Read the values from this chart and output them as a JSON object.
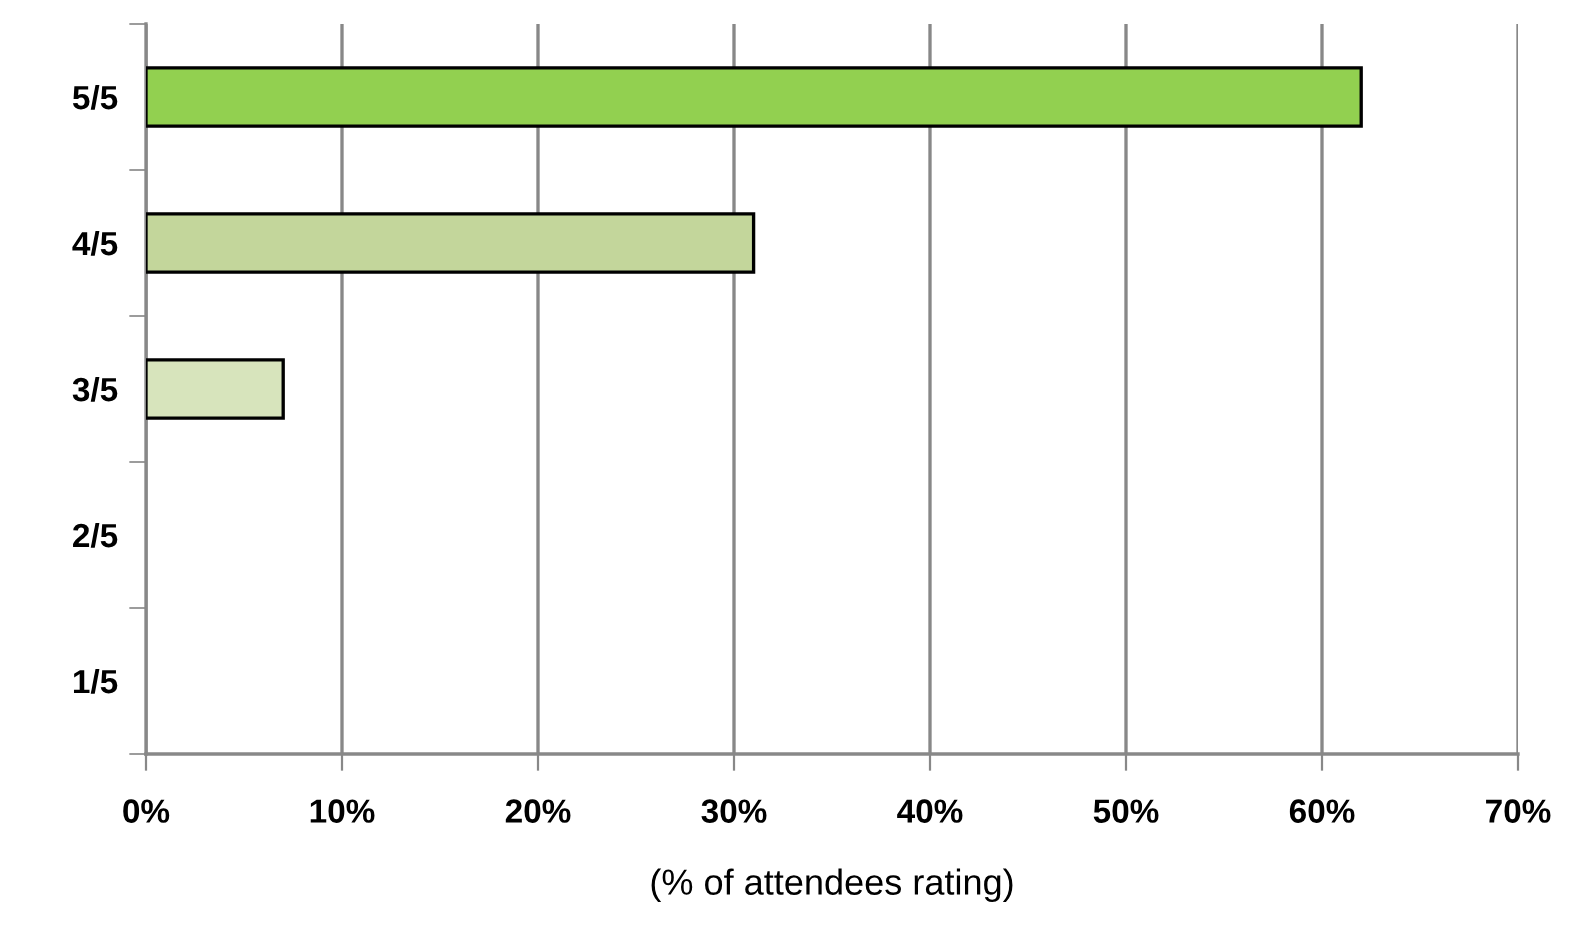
{
  "chart_data": {
    "type": "bar",
    "orientation": "horizontal",
    "xlabel": "(% of attendees rating)",
    "categories": [
      "5/5",
      "4/5",
      "3/5",
      "2/5",
      "1/5"
    ],
    "values": [
      62,
      31,
      7,
      0,
      0
    ],
    "colors": [
      "#92d050",
      "#c3d69b",
      "#d7e4bc",
      "#d7e4bc",
      "#d7e4bc"
    ],
    "xlim": [
      0,
      70
    ],
    "xticks": [
      {
        "value": 0,
        "label": "0%"
      },
      {
        "value": 10,
        "label": "10%"
      },
      {
        "value": 20,
        "label": "20%"
      },
      {
        "value": 30,
        "label": "30%"
      },
      {
        "value": 40,
        "label": "40%"
      },
      {
        "value": 50,
        "label": "50%"
      },
      {
        "value": 60,
        "label": "60%"
      },
      {
        "value": 70,
        "label": "70%"
      }
    ],
    "grid": "x"
  }
}
